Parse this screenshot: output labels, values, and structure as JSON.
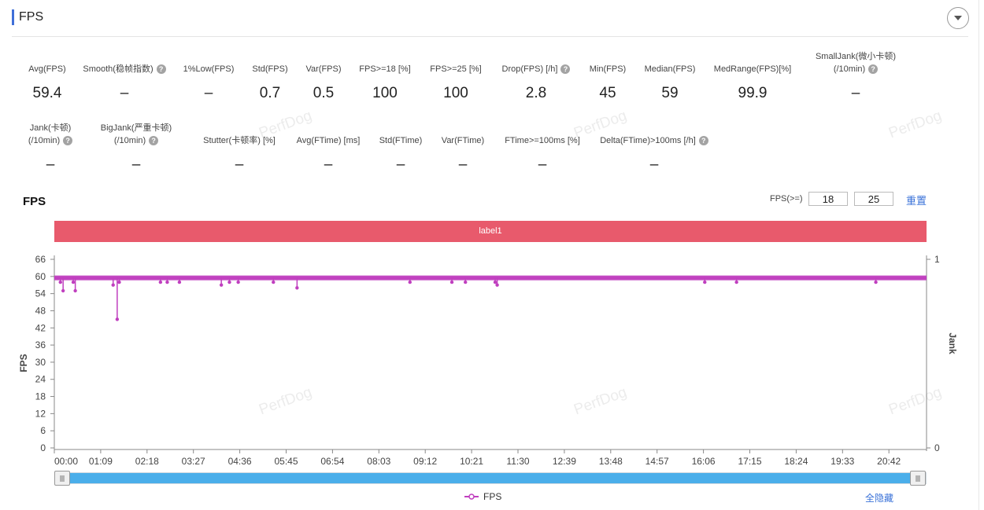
{
  "header": {
    "title": "FPS"
  },
  "metrics_row1": [
    {
      "label": "Avg(FPS)",
      "value": "59.4",
      "help": false
    },
    {
      "label": "Smooth(稳帧指数)",
      "value": "–",
      "help": true
    },
    {
      "label": "1%Low(FPS)",
      "value": "–",
      "help": false
    },
    {
      "label": "Std(FPS)",
      "value": "0.7",
      "help": false
    },
    {
      "label": "Var(FPS)",
      "value": "0.5",
      "help": false
    },
    {
      "label": "FPS>=18 [%]",
      "value": "100",
      "help": false
    },
    {
      "label": "FPS>=25 [%]",
      "value": "100",
      "help": false
    },
    {
      "label": "Drop(FPS) [/h]",
      "value": "2.8",
      "help": true
    },
    {
      "label": "Min(FPS)",
      "value": "45",
      "help": false
    },
    {
      "label": "Median(FPS)",
      "value": "59",
      "help": false
    },
    {
      "label": "MedRange(FPS)[%]",
      "value": "99.9",
      "help": false
    },
    {
      "label": "SmallJank(微小卡顿)",
      "label2": "(/10min)",
      "value": "–",
      "help": true
    }
  ],
  "metrics_row2": [
    {
      "label": "Jank(卡顿)",
      "label2": "(/10min)",
      "value": "–",
      "help": true
    },
    {
      "label": "BigJank(严重卡顿)",
      "label2": "(/10min)",
      "value": "–",
      "help": true
    },
    {
      "label": "Stutter(卡顿率) [%]",
      "value": "–",
      "help": false
    },
    {
      "label": "Avg(FTime) [ms]",
      "value": "–",
      "help": false
    },
    {
      "label": "Std(FTime)",
      "value": "–",
      "help": false
    },
    {
      "label": "Var(FTime)",
      "value": "–",
      "help": false
    },
    {
      "label": "FTime>=100ms [%]",
      "value": "–",
      "help": false
    },
    {
      "label": "Delta(FTime)>100ms [/h]",
      "value": "–",
      "help": true
    }
  ],
  "watermark_text": "PerfDog",
  "chart_controls": {
    "title": "FPS",
    "threshold_label": "FPS(>=)",
    "threshold_1": "18",
    "threshold_2": "25",
    "reset_label": "重置"
  },
  "label_band": {
    "text": "label1",
    "color": "#e85a6c"
  },
  "legend": {
    "series_label": "FPS",
    "hide_all_label": "全隐藏"
  },
  "colors": {
    "series": "#c03fbf",
    "accent": "#3f6fd8",
    "link": "#3a72d8",
    "slider": "#4aaeea"
  },
  "chart_data": {
    "type": "line",
    "ylabel": "FPS",
    "ylabel_right": "Jank",
    "ylim": [
      0,
      66
    ],
    "ylim_right": [
      0,
      1
    ],
    "yticks": [
      0,
      6,
      12,
      18,
      24,
      30,
      36,
      42,
      48,
      54,
      60,
      66
    ],
    "yticks_right": [
      0,
      1
    ],
    "x_ticks": [
      "00:00",
      "01:09",
      "02:18",
      "03:27",
      "04:36",
      "05:45",
      "06:54",
      "08:03",
      "09:12",
      "10:21",
      "11:30",
      "12:39",
      "13:48",
      "14:57",
      "16:06",
      "17:15",
      "18:24",
      "19:33",
      "20:42"
    ],
    "x_range_seconds": [
      0,
      1290
    ],
    "baseline_fps": 59.5,
    "series": [
      {
        "name": "FPS",
        "dips": [
          {
            "t": 9,
            "fps": 58
          },
          {
            "t": 13,
            "fps": 55
          },
          {
            "t": 28,
            "fps": 58
          },
          {
            "t": 31,
            "fps": 55
          },
          {
            "t": 87,
            "fps": 57
          },
          {
            "t": 93,
            "fps": 45
          },
          {
            "t": 96,
            "fps": 58
          },
          {
            "t": 157,
            "fps": 58
          },
          {
            "t": 167,
            "fps": 58
          },
          {
            "t": 185,
            "fps": 58
          },
          {
            "t": 247,
            "fps": 57
          },
          {
            "t": 259,
            "fps": 58
          },
          {
            "t": 272,
            "fps": 58
          },
          {
            "t": 324,
            "fps": 58
          },
          {
            "t": 359,
            "fps": 56
          },
          {
            "t": 526,
            "fps": 58
          },
          {
            "t": 588,
            "fps": 58
          },
          {
            "t": 608,
            "fps": 58
          },
          {
            "t": 652,
            "fps": 58
          },
          {
            "t": 655,
            "fps": 57
          },
          {
            "t": 962,
            "fps": 58
          },
          {
            "t": 1009,
            "fps": 58
          },
          {
            "t": 1215,
            "fps": 58
          }
        ]
      }
    ],
    "grid": false,
    "legend": "bottom-center"
  }
}
